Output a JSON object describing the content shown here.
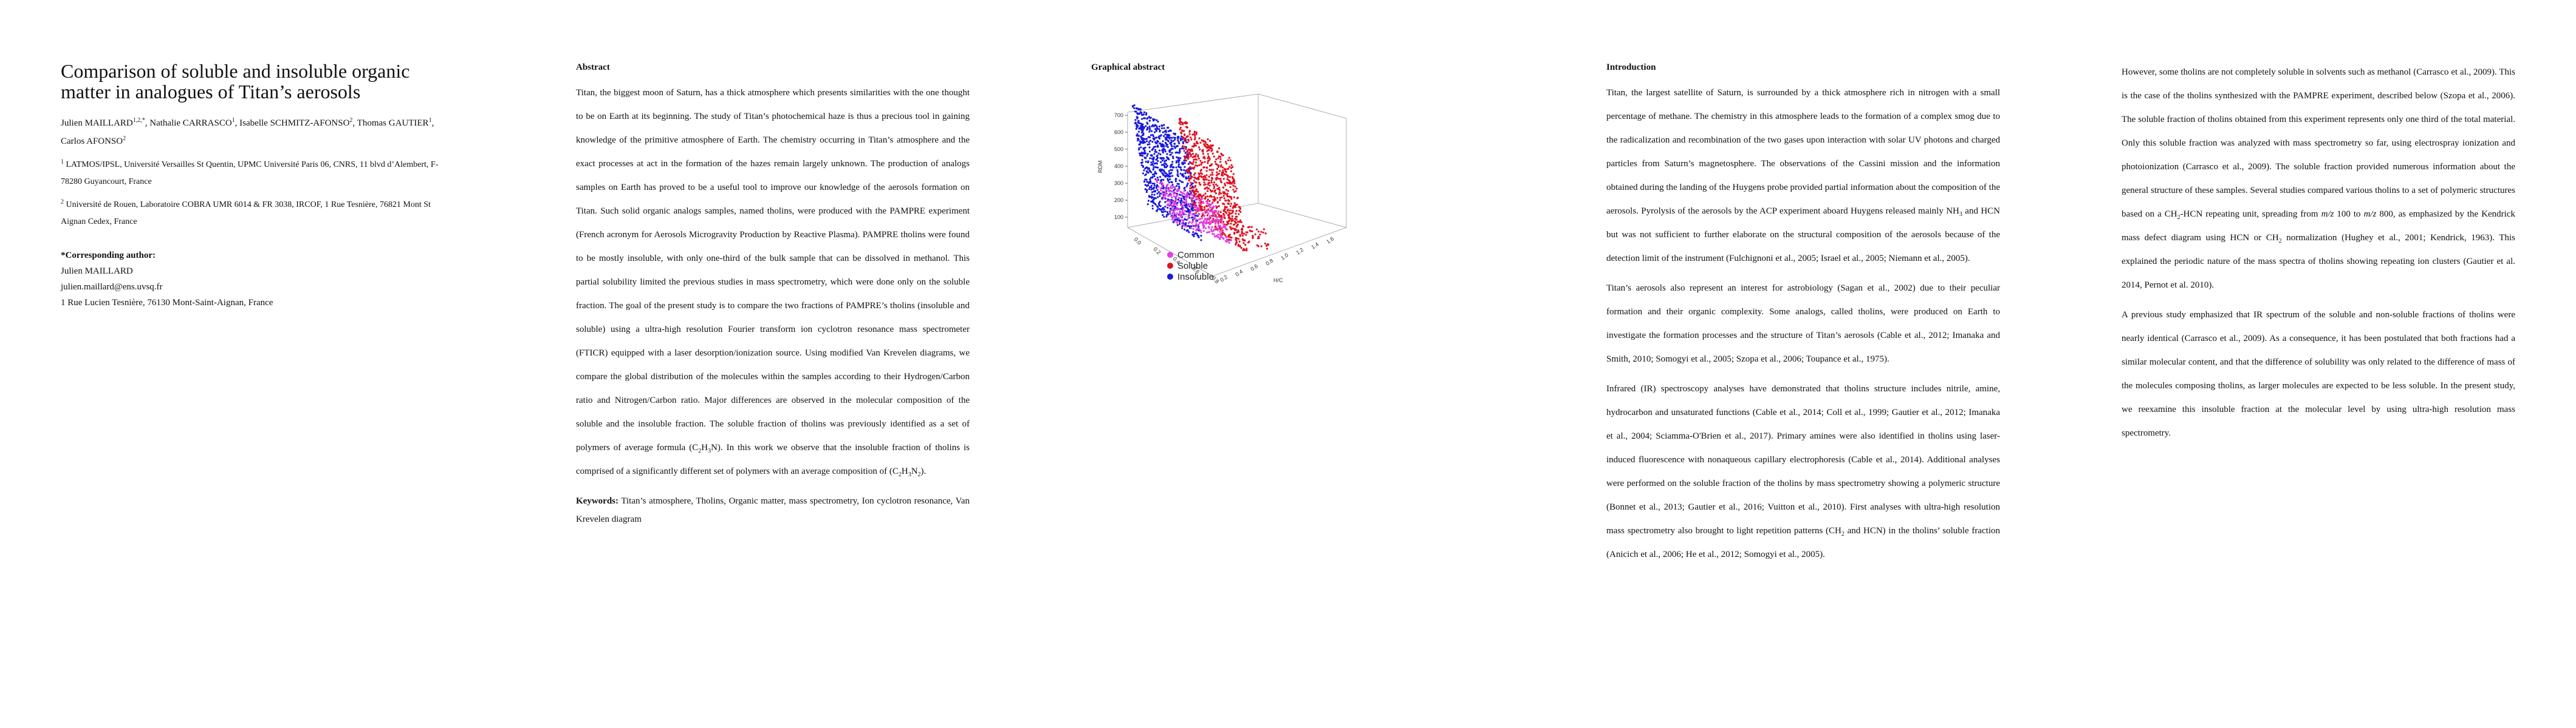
{
  "page1": {
    "title": "Comparison of soluble and insoluble organic matter in analogues of Titan’s aerosols",
    "authors": [
      {
        "name": "Julien MAILLARD",
        "sup": "1,2,*"
      },
      {
        "name": "Nathalie CARRASCO",
        "sup": "1"
      },
      {
        "name": "Isabelle SCHMITZ-AFONSO",
        "sup": "2"
      },
      {
        "name": "Thomas GAUTIER",
        "sup": "1"
      },
      {
        "name": "Carlos AFONSO",
        "sup": "2"
      }
    ],
    "affiliations": [
      {
        "sup": "1",
        "text": "LATMOS/IPSL, Université Versailles St Quentin, UPMC Université Paris 06, CNRS, 11 blvd d’Alembert, F-78280 Guyancourt, France"
      },
      {
        "sup": "2",
        "text": "Université de Rouen, Laboratoire COBRA UMR 6014 & FR 3038, IRCOF, 1 Rue Tesnière, 76821 Mont St Aignan Cedex, France"
      }
    ],
    "corresponding_heading": "*Corresponding author:",
    "corresponding": [
      "Julien MAILLARD",
      "julien.maillard@ens.uvsq.fr",
      "1 Rue Lucien Tesnière, 76130 Mont-Saint-Aignan, France"
    ]
  },
  "page2": {
    "heading": "Abstract",
    "abstract_a": "Titan, the biggest moon of Saturn, has a thick atmosphere which presents similarities with the one thought to be on Earth at its beginning. The study of Titan’s photochemical haze is thus a precious tool in gaining knowledge of the primitive atmosphere of Earth. The chemistry occurring in Titan’s atmosphere and the exact processes at act in the formation of the hazes remain largely unknown. The production of analogs samples on Earth has proved to be a useful tool to improve our knowledge of the aerosols formation on Titan. Such solid organic analogs samples, named tholins, were produced with the PAMPRE experiment (French acronym for Aerosols Microgravity Production by Reactive Plasma). PAMPRE tholins were found to be mostly insoluble, with only one-third of the bulk sample that can be dissolved in methanol. This partial solubility limited the previous studies in mass spectrometry, which were done only on the soluble fraction. The goal of the present study is to compare the two fractions of PAMPRE’s tholins (insoluble and soluble) using a ultra-high resolution Fourier transform ion cyclotron resonance mass spectrometer (FTICR) equipped with a laser desorption/ionization source. Using modified Van Krevelen diagrams, we compare the global distribution of the molecules within the samples according to their Hydrogen/Carbon ratio and Nitrogen/Carbon ratio. Major differences are observed in the molecular composition of the soluble and the insoluble fraction. The soluble fraction of tholins was previously identified as a set of polymers of average formula (C",
    "abstract_b": "). In this work we observe that the insoluble fraction of tholins is comprised of a significantly different set of polymers with an average composition of (C",
    "abstract_c": ").",
    "keywords_label": "Keywords:",
    "keywords": "Titan’s atmosphere, Tholins, Organic matter, mass spectrometry, Ion cyclotron resonance, Van Krevelen diagram"
  },
  "page3": {
    "heading": "Graphical abstract",
    "legend": [
      "Common",
      "Soluble",
      "Insoluble"
    ],
    "colors": {
      "common": "#e040e0",
      "soluble": "#e01020",
      "insoluble": "#1a1adc"
    },
    "y_ticks": [
      "700",
      "600",
      "500",
      "400",
      "300",
      "200",
      "100"
    ],
    "y_label": "RDM",
    "x_label": "H/C",
    "x_ticks": [
      "0.2",
      "0.4",
      "0.6",
      "0.8",
      "1.0",
      "1.2",
      "1.4",
      "1.6"
    ],
    "z_ticks": [
      "0.0",
      "0.2",
      "0.4",
      "0.6",
      "0.8"
    ]
  },
  "page4": {
    "heading": "Introduction",
    "p1": "Titan, the largest satellite of Saturn, is surrounded by a thick atmosphere rich in nitrogen with a small percentage of methane. The chemistry in this atmosphere leads to the formation of a complex smog due to the radicalization and recombination of the two gases upon interaction with solar UV photons and charged particles from Saturn’s magnetosphere. The observations of the Cassini mission and the information obtained during the landing of the Huygens probe provided partial information about the composition of the aerosols. Pyrolysis of the aerosols by the ACP experiment aboard Huygens released mainly NH",
    "p1b": " and HCN but was not sufficient to further elaborate on the structural composition of the aerosols because of the detection limit of the instrument (Fulchignoni et al., 2005; Israel et al., 2005; Niemann et al., 2005).",
    "p2": "Titan’s aerosols also represent an interest for astrobiology (Sagan et al., 2002) due to their peculiar formation and their organic complexity. Some analogs, called tholins, were produced on Earth to investigate the formation processes and the structure of Titan’s aerosols (Cable et al., 2012; Imanaka and Smith, 2010; Somogyi et al., 2005; Szopa et al., 2006; Toupance et al., 1975).",
    "p3": "Infrared (IR) spectroscopy analyses have demonstrated that tholins structure includes nitrile, amine, hydrocarbon and unsaturated functions (Cable et al., 2014; Coll et al., 1999; Gautier et al., 2012; Imanaka et al., 2004; Sciamma-O'Brien et al., 2017). Primary amines were also identified in tholins using laser-induced fluorescence with nonaqueous capillary electrophoresis (Cable et al., 2014). Additional analyses were performed on the soluble fraction of the tholins by mass spectrometry showing a polymeric structure (Bonnet et al., 2013; Gautier et al., 2016; Vuitton et al., 2010). First analyses with ultra-high resolution mass spectrometry also brought to light repetition patterns (CH",
    "p3b": " and HCN) in the tholins’ soluble fraction (Anicich et al., 2006; He et al., 2012; Somogyi et al., 2005)."
  },
  "page5": {
    "p1a": "However, some tholins are not completely soluble in solvents such as methanol (Carrasco et al., 2009). This is the case of the tholins synthesized with the PAMPRE experiment, described below (Szopa et al., 2006). The soluble fraction of tholins obtained from this experiment represents only one third of the total material. Only this soluble fraction was analyzed with mass spectrometry so far, using electrospray ionization and photoionization (Carrasco et al., 2009). The soluble fraction provided numerous information about the general structure of these samples. Several studies compared various tholins to a set of polymeric structures based on a CH",
    "p1b": "-HCN repeating unit, spreading from ",
    "p1c": " 100 to ",
    "p1d": " 800, as emphasized by the Kendrick mass defect diagram using HCN or CH",
    "p1e": " normalization (Hughey et al., 2001; Kendrick, 1963). This explained the periodic nature of the mass spectra of tholins showing repeating ion clusters (Gautier et al. 2014, Pernot et al. 2010).",
    "mz": "m/z",
    "p2": "A previous study emphasized that IR spectrum of the soluble and non-soluble fractions of tholins were nearly identical (Carrasco et al., 2009). As a consequence, it has been postulated that both fractions had a similar molecular content, and that the difference of solubility was only related to the difference of mass of the molecules composing tholins, as larger molecules are expected to be less soluble. In the present study, we reexamine this insoluble fraction at the molecular level by using ultra-high resolution mass spectrometry."
  },
  "sub": {
    "two": "2",
    "three": "3",
    "one": "1",
    "h": "H",
    "n": "N",
    "c": "C"
  }
}
